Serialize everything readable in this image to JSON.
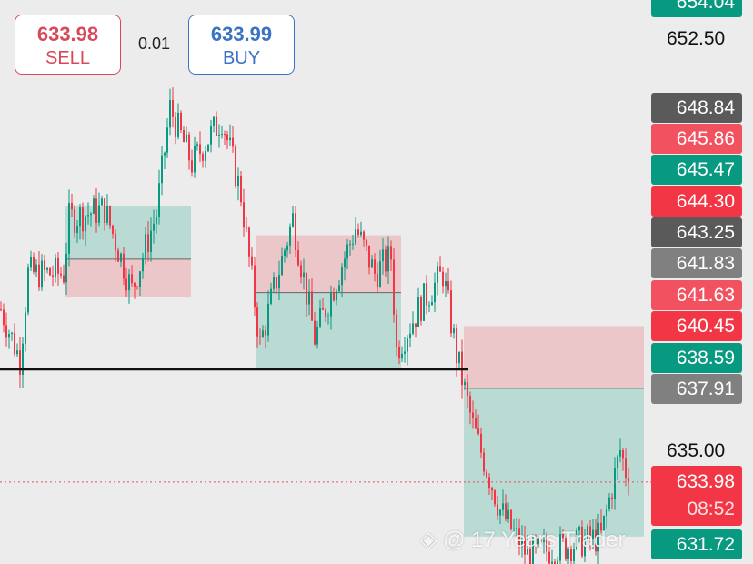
{
  "order_panel": {
    "sell": {
      "price": "633.98",
      "label": "SELL"
    },
    "buy": {
      "price": "633.99",
      "label": "BUY"
    },
    "lot": "0.01"
  },
  "price_axis": {
    "plain_labels": [
      "652.50",
      "635.00"
    ],
    "tags": [
      {
        "text": "654.04",
        "color": "#089981"
      },
      {
        "text": "648.84",
        "color": "#5a5a5a"
      },
      {
        "text": "645.86",
        "color": "#f2525f"
      },
      {
        "text": "645.47",
        "color": "#089981"
      },
      {
        "text": "644.30",
        "color": "#f23645"
      },
      {
        "text": "643.25",
        "color": "#5a5a5a"
      },
      {
        "text": "641.83",
        "color": "#808080"
      },
      {
        "text": "641.63",
        "color": "#f2525f"
      },
      {
        "text": "640.45",
        "color": "#f23645"
      },
      {
        "text": "638.59",
        "color": "#089981"
      },
      {
        "text": "637.91",
        "color": "#808080"
      },
      {
        "text": "631.72",
        "color": "#089981"
      }
    ],
    "current_price": "633.98",
    "countdown": "08:52",
    "current_color": "#f23645"
  },
  "watermark": "@ 17 Years Trader",
  "chart_data": {
    "type": "candlestick",
    "up_color": "#089981",
    "down_color": "#f23645",
    "ylim": [
      630.3,
      654.1
    ],
    "path_keypoints": [
      [
        0,
        641.2
      ],
      [
        7,
        639.1
      ],
      [
        10,
        642.7
      ],
      [
        23,
        642.7
      ],
      [
        25,
        645.0
      ],
      [
        38,
        645.4
      ],
      [
        48,
        642.0
      ],
      [
        57,
        645.2
      ],
      [
        62,
        649.6
      ],
      [
        70,
        647.3
      ],
      [
        81,
        649.2
      ],
      [
        88,
        646.0
      ],
      [
        95,
        639.7
      ],
      [
        100,
        642.0
      ],
      [
        107,
        645.0
      ],
      [
        115,
        640.0
      ],
      [
        130,
        644.6
      ],
      [
        137,
        642.7
      ],
      [
        143,
        643.4
      ],
      [
        145,
        639.5
      ],
      [
        155,
        641.6
      ],
      [
        162,
        642.7
      ],
      [
        167,
        639.3
      ],
      [
        173,
        636.3
      ],
      [
        183,
        632.8
      ],
      [
        193,
        630.9
      ],
      [
        207,
        631.3
      ],
      [
        220,
        631.7
      ],
      [
        227,
        635.3
      ],
      [
        230,
        633.98
      ]
    ],
    "support_line": 638.7,
    "positions": [
      {
        "from": 24,
        "to": 70,
        "top": 645.5,
        "entry": 643.3,
        "bottom": 641.7,
        "side": "long"
      },
      {
        "from": 94,
        "to": 147,
        "top": 644.3,
        "entry": 641.9,
        "bottom": 638.7,
        "side": "short"
      },
      {
        "from": 170,
        "to": 236,
        "top": 640.5,
        "entry": 637.9,
        "bottom": 631.7,
        "side": "short"
      }
    ]
  }
}
